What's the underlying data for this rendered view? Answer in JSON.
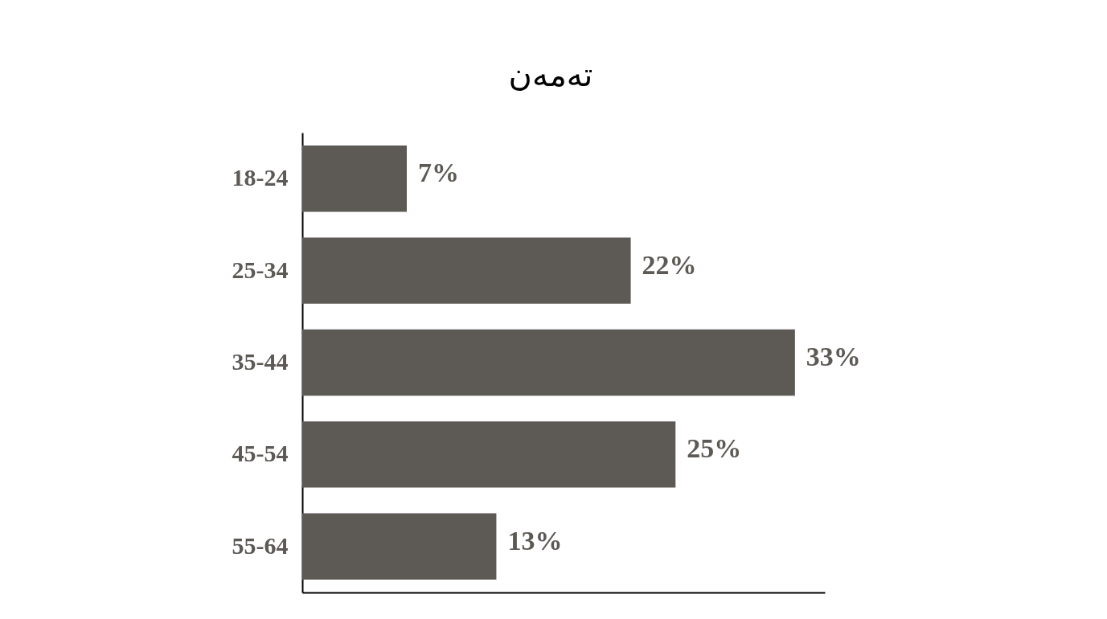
{
  "chart_data": {
    "type": "bar",
    "title": "تەمەن",
    "orientation": "horizontal",
    "categories": [
      "18-24",
      "25-34",
      "35-44",
      "45-54",
      "55-64"
    ],
    "values": [
      7,
      22,
      33,
      25,
      13
    ],
    "value_labels": [
      "7%",
      "22%",
      "33%",
      "25%",
      "13%"
    ],
    "color": "#5d5955",
    "xlim": [
      0,
      35
    ],
    "grid": false,
    "tick_labels": "y"
  }
}
